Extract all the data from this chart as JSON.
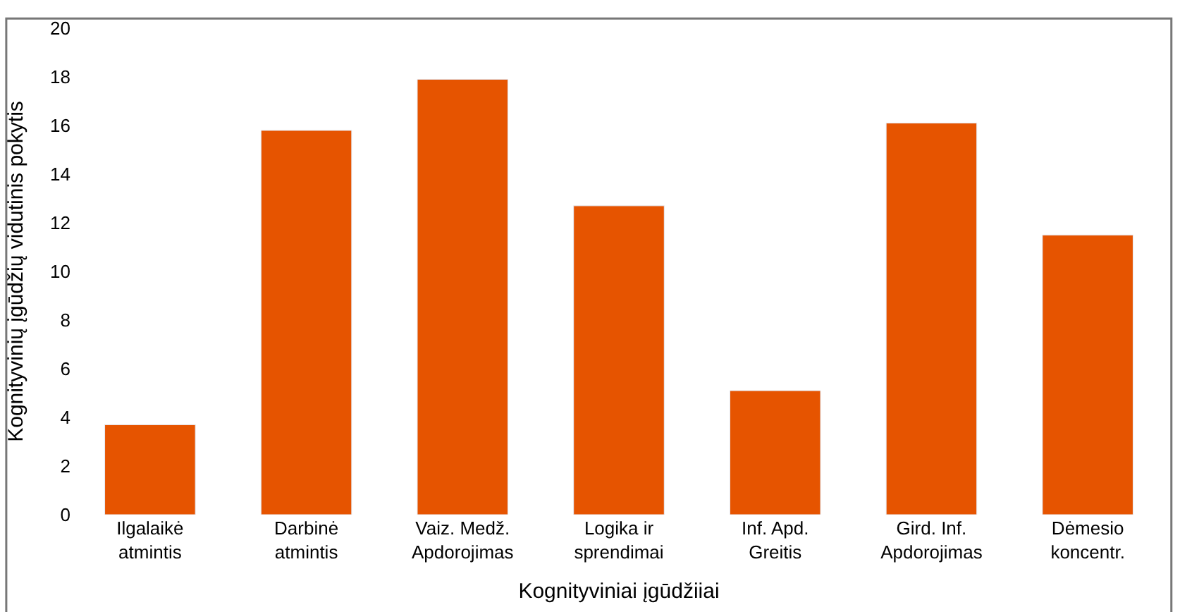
{
  "chart_data": {
    "type": "bar",
    "xlabel": "Kognityviniai įgūdžiiai",
    "ylabel": "Kognityvinių įgūdžių vidutinis pokytis",
    "categories": [
      "Ilgalaikė atmintis",
      "Darbinė atmintis",
      "Vaiz. Medž. Apdorojimas",
      "Logika ir sprendimai",
      "Inf. Apd. Greitis",
      "Gird. Inf. Apdorojimas",
      "Dėmesio koncentr."
    ],
    "values": [
      3.7,
      15.8,
      17.9,
      12.7,
      5.1,
      16.1,
      11.5
    ],
    "color": "#e65400",
    "ylim": [
      0,
      20
    ],
    "yticks": [
      0,
      2,
      4,
      6,
      8,
      10,
      12,
      14,
      16,
      18,
      20
    ],
    "legend": false
  }
}
